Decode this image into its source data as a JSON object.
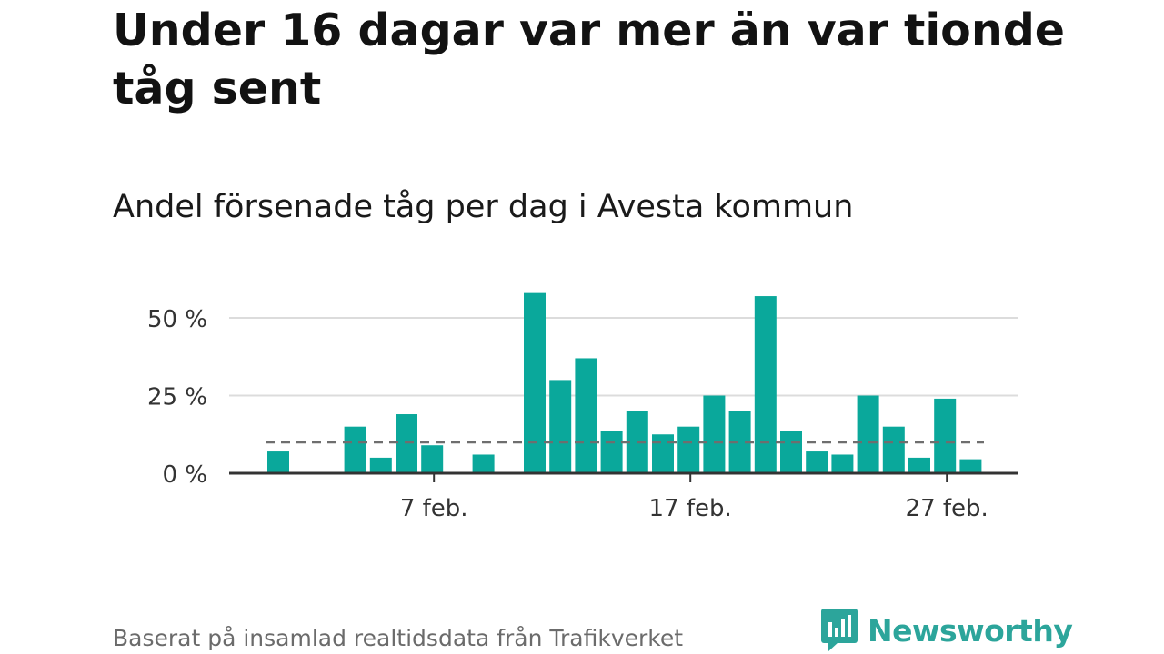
{
  "title": "Under 16 dagar var mer än var tionde tåg sent",
  "subtitle": "Andel försenade tåg per dag i Avesta kommun",
  "footer": "Baserat på insamlad realtidsdata från Trafikverket",
  "brand": {
    "name": "Newsworthy",
    "logo_icon": "bar-chart-speech-bubble-icon",
    "color": "#2ca59b"
  },
  "chart_data": {
    "type": "bar",
    "x_unit": "dates in February",
    "x": [
      1,
      2,
      3,
      4,
      5,
      6,
      7,
      8,
      9,
      10,
      11,
      12,
      13,
      14,
      15,
      16,
      17,
      18,
      19,
      20,
      21,
      22,
      23,
      24,
      25,
      26,
      27,
      28
    ],
    "values": [
      7,
      0,
      0,
      15,
      5,
      19,
      9,
      0,
      6,
      0,
      58,
      30,
      37,
      13.5,
      20,
      12.5,
      15,
      25,
      20,
      57,
      13.5,
      7,
      6,
      25,
      15,
      5,
      24,
      4.5
    ],
    "ylim": [
      0,
      60
    ],
    "yticks": [
      {
        "value": 0,
        "label": "0 %"
      },
      {
        "value": 25,
        "label": "25 %"
      },
      {
        "value": 50,
        "label": "50 %"
      }
    ],
    "xticks": [
      {
        "value": 7,
        "label": "7 feb."
      },
      {
        "value": 17,
        "label": "17 feb."
      },
      {
        "value": 27,
        "label": "27 feb."
      }
    ],
    "reference_line": {
      "value": 10,
      "style": "dashed"
    },
    "bar_color": "#0aa89b",
    "grid": true
  }
}
